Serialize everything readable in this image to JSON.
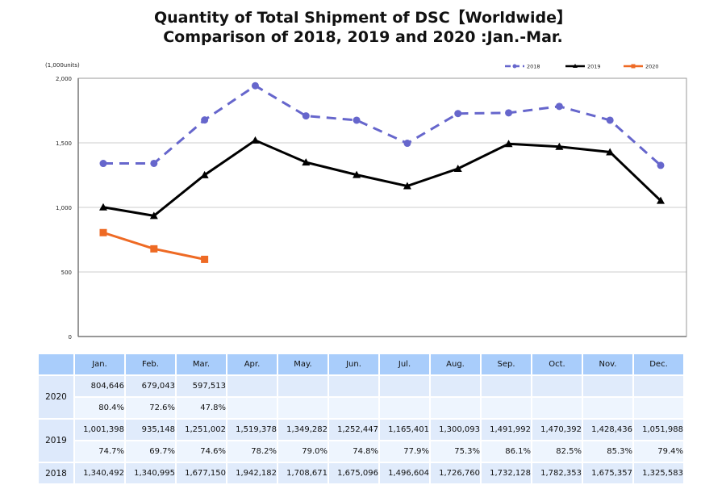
{
  "chart_data": {
    "type": "line",
    "title": "Quantity of Total Shipment of DSC【Worldwide】",
    "subtitle": "Comparison of 2018, 2019 and 2020 :Jan.-Mar.",
    "ylabel": "(1,000units)",
    "xlabel": "",
    "ylim": [
      0,
      2000
    ],
    "yticks": [
      0,
      500,
      1000,
      1500,
      2000
    ],
    "ytick_labels": [
      "0",
      "500",
      "1,000",
      "1,500",
      "2,000"
    ],
    "grid": true,
    "legend_position": "top-right",
    "categories": [
      "Jan.",
      "Feb.",
      "Mar.",
      "Apr.",
      "May.",
      "Jun.",
      "Jul.",
      "Aug.",
      "Sep.",
      "Oct.",
      "Nov.",
      "Dec."
    ],
    "series": [
      {
        "name": "2018",
        "color": "#6666cc",
        "style": "dashed",
        "marker": "circle",
        "values": [
          1340.492,
          1340.995,
          1677.15,
          1942.182,
          1708.671,
          1675.096,
          1496.604,
          1726.76,
          1732.128,
          1782.353,
          1675.357,
          1325.583
        ]
      },
      {
        "name": "2019",
        "color": "#000000",
        "style": "solid",
        "marker": "triangle",
        "values": [
          1001.398,
          935.148,
          1251.002,
          1519.378,
          1349.282,
          1252.447,
          1165.401,
          1300.093,
          1491.992,
          1470.392,
          1428.436,
          1051.988
        ]
      },
      {
        "name": "2020",
        "color": "#ee6a24",
        "style": "solid",
        "marker": "square",
        "values": [
          804.646,
          679.043,
          597.513
        ]
      }
    ]
  },
  "table": {
    "header": [
      "Jan.",
      "Feb.",
      "Mar.",
      "Apr.",
      "May.",
      "Jun.",
      "Jul.",
      "Aug.",
      "Sep.",
      "Oct.",
      "Nov.",
      "Dec."
    ],
    "rows": [
      {
        "year": "2020",
        "values": [
          "804,646",
          "679,043",
          "597,513",
          "",
          "",
          "",
          "",
          "",
          "",
          "",
          "",
          ""
        ],
        "percents": [
          "80.4%",
          "72.6%",
          "47.8%",
          "",
          "",
          "",
          "",
          "",
          "",
          "",
          "",
          ""
        ]
      },
      {
        "year": "2019",
        "values": [
          "1,001,398",
          "935,148",
          "1,251,002",
          "1,519,378",
          "1,349,282",
          "1,252,447",
          "1,165,401",
          "1,300,093",
          "1,491,992",
          "1,470,392",
          "1,428,436",
          "1,051,988"
        ],
        "percents": [
          "74.7%",
          "69.7%",
          "74.6%",
          "78.2%",
          "79.0%",
          "74.8%",
          "77.9%",
          "75.3%",
          "86.1%",
          "82.5%",
          "85.3%",
          "79.4%"
        ]
      },
      {
        "year": "2018",
        "values": [
          "1,340,492",
          "1,340,995",
          "1,677,150",
          "1,942,182",
          "1,708,671",
          "1,675,096",
          "1,496,604",
          "1,726,760",
          "1,732,128",
          "1,782,353",
          "1,675,357",
          "1,325,583"
        ]
      }
    ]
  }
}
